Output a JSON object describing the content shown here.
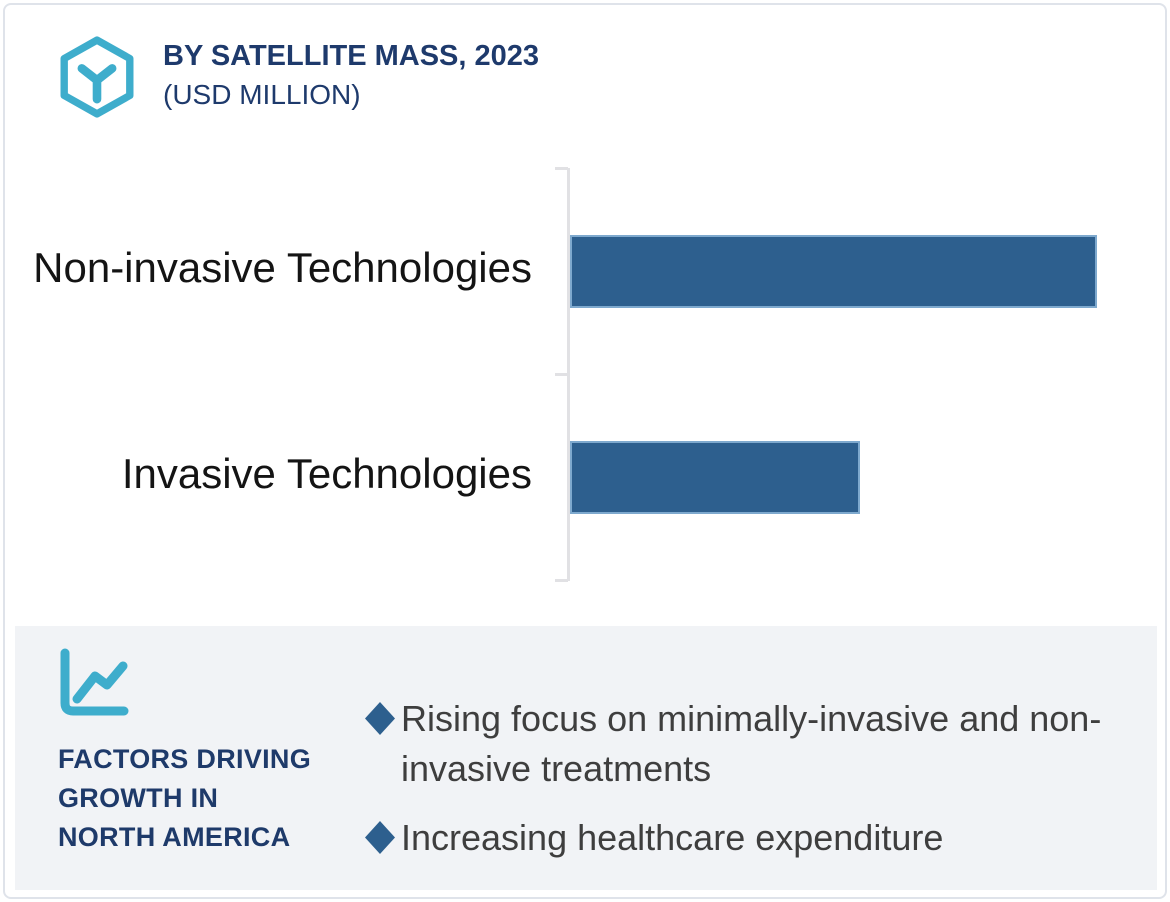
{
  "header": {
    "title": "BY SATELLITE MASS, 2023",
    "subtitle": "(USD MILLION)",
    "icon": "hexagon-y-molecule-icon"
  },
  "chart_data": {
    "type": "bar",
    "orientation": "horizontal",
    "categories": [
      "Non-invasive Technologies",
      "Invasive Technologies"
    ],
    "values_relative": [
      100,
      55
    ],
    "value_axis_labeled": false,
    "note": "No numeric axis, ticks labels or data labels are shown; values are relative bar lengths with the longest bar = 100.",
    "title": "BY SATELLITE MASS, 2023 (USD MILLION)",
    "xlabel": "",
    "ylabel": "",
    "grid": false,
    "legend": false,
    "bar_color": "#2d5f8e",
    "bar_edge_color": "#7ea9ce",
    "axis_color": "#e1e1e4"
  },
  "factors": {
    "icon": "trend-line-chart-icon",
    "heading_lines": [
      "FACTORS DRIVING",
      "GROWTH IN",
      "NORTH AMERICA"
    ],
    "bullets": [
      "Rising focus on minimally-invasive and non-invasive treatments",
      "Increasing healthcare expenditure"
    ],
    "bullet_marker": "diamond-icon",
    "panel_bg": "#f1f3f6"
  },
  "colors": {
    "accent_teal": "#3eadcc",
    "navy": "#1e3a6c",
    "bar_blue": "#2d5f8e",
    "body_text": "#3e3e3e",
    "card_border": "#dfe3ea"
  }
}
